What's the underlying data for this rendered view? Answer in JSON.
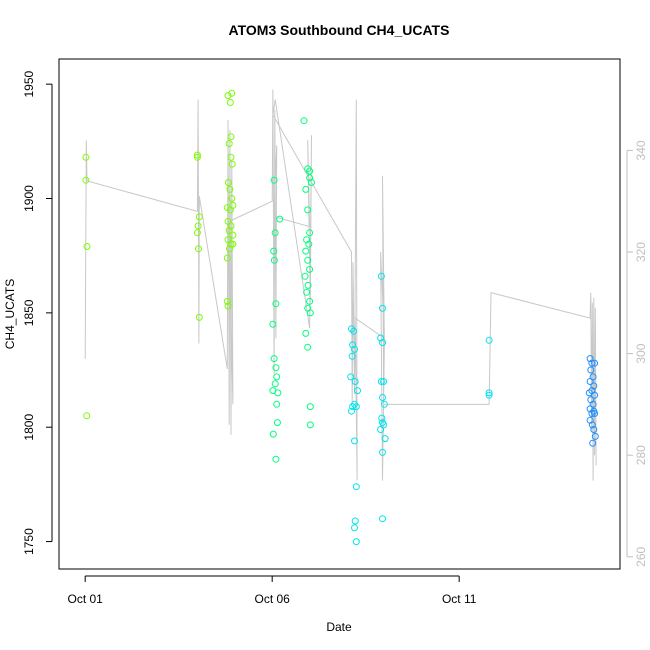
{
  "chart_data": {
    "type": "scatter",
    "title": "ATOM3 Southbound CH4_UCATS",
    "xlabel": "Date",
    "ylabel": "CH4_UCATS",
    "x_ticks": [
      "Oct 01",
      "Oct 06",
      "Oct 11"
    ],
    "x_tick_values": [
      0,
      5,
      10
    ],
    "xlim": [
      -0.7,
      14.3
    ],
    "ylim": [
      1738,
      1961
    ],
    "y_ticks": [
      1750,
      1800,
      1850,
      1900,
      1950
    ],
    "secondary_ylim": [
      257.6,
      358.0
    ],
    "secondary_y_ticks": [
      260,
      280,
      300,
      320,
      340
    ],
    "grid": false,
    "legend": "none",
    "point_colors": {
      "early": "#7CFC00",
      "mid": "#00FF7F",
      "late": "#00E5EE",
      "end": "#1E90FF"
    },
    "line_color": "#c8c8c8",
    "points": [
      [
        0.02,
        1918,
        0
      ],
      [
        0.02,
        1908,
        0
      ],
      [
        0.05,
        1879,
        0
      ],
      [
        0.04,
        1805,
        0
      ],
      [
        3.0,
        1919,
        0
      ],
      [
        3.0,
        1918,
        0
      ],
      [
        3.05,
        1892,
        0
      ],
      [
        3.02,
        1888,
        0
      ],
      [
        3.0,
        1885,
        0
      ],
      [
        3.03,
        1878,
        0
      ],
      [
        3.05,
        1848,
        0
      ],
      [
        3.82,
        1945,
        0
      ],
      [
        3.92,
        1946,
        0
      ],
      [
        3.88,
        1942,
        0
      ],
      [
        3.9,
        1927,
        0
      ],
      [
        3.85,
        1924,
        0
      ],
      [
        3.9,
        1918,
        0
      ],
      [
        3.93,
        1915,
        0
      ],
      [
        3.83,
        1907,
        0
      ],
      [
        3.87,
        1904,
        0
      ],
      [
        3.92,
        1900,
        0
      ],
      [
        3.95,
        1897,
        0
      ],
      [
        3.8,
        1896,
        0
      ],
      [
        3.88,
        1895,
        0
      ],
      [
        3.82,
        1890,
        0
      ],
      [
        3.9,
        1888,
        0
      ],
      [
        3.85,
        1886,
        0
      ],
      [
        3.95,
        1884,
        0
      ],
      [
        3.82,
        1882,
        0
      ],
      [
        3.9,
        1880,
        0
      ],
      [
        3.86,
        1878,
        0
      ],
      [
        3.8,
        1874,
        0
      ],
      [
        3.8,
        1855,
        0
      ],
      [
        3.82,
        1853,
        0
      ],
      [
        3.95,
        1880,
        0
      ],
      [
        5.05,
        1908,
        1
      ],
      [
        5.2,
        1891,
        1
      ],
      [
        5.08,
        1885,
        1
      ],
      [
        5.04,
        1877,
        1
      ],
      [
        5.06,
        1873,
        1
      ],
      [
        5.1,
        1854,
        1
      ],
      [
        5.02,
        1845,
        1
      ],
      [
        5.05,
        1830,
        1
      ],
      [
        5.1,
        1826,
        1
      ],
      [
        5.12,
        1822,
        1
      ],
      [
        5.08,
        1819,
        1
      ],
      [
        5.02,
        1816,
        1
      ],
      [
        5.15,
        1815,
        1
      ],
      [
        5.12,
        1810,
        1
      ],
      [
        5.14,
        1802,
        1
      ],
      [
        5.03,
        1797,
        1
      ],
      [
        5.1,
        1786,
        1
      ],
      [
        5.85,
        1934,
        1
      ],
      [
        5.95,
        1913,
        1
      ],
      [
        6.0,
        1912,
        1
      ],
      [
        6.0,
        1909,
        1
      ],
      [
        6.05,
        1907,
        1
      ],
      [
        5.9,
        1904,
        1
      ],
      [
        5.95,
        1895,
        1
      ],
      [
        6.0,
        1885,
        1
      ],
      [
        5.92,
        1882,
        1
      ],
      [
        5.98,
        1880,
        1
      ],
      [
        5.9,
        1877,
        1
      ],
      [
        5.95,
        1873,
        1
      ],
      [
        6.0,
        1869,
        1
      ],
      [
        5.88,
        1866,
        1
      ],
      [
        5.96,
        1862,
        1
      ],
      [
        5.92,
        1859,
        1
      ],
      [
        6.0,
        1855,
        1
      ],
      [
        5.95,
        1852,
        1
      ],
      [
        6.02,
        1850,
        1
      ],
      [
        5.9,
        1841,
        1
      ],
      [
        5.95,
        1835,
        1
      ],
      [
        6.02,
        1809,
        1
      ],
      [
        6.02,
        1801,
        1
      ],
      [
        7.12,
        1843,
        2
      ],
      [
        7.18,
        1842,
        2
      ],
      [
        7.15,
        1836,
        2
      ],
      [
        7.2,
        1834,
        2
      ],
      [
        7.14,
        1831,
        2
      ],
      [
        7.1,
        1822,
        2
      ],
      [
        7.22,
        1820,
        2
      ],
      [
        7.28,
        1816,
        2
      ],
      [
        7.2,
        1810,
        2
      ],
      [
        7.15,
        1809,
        2
      ],
      [
        7.12,
        1807,
        2
      ],
      [
        7.25,
        1809,
        2
      ],
      [
        7.2,
        1794,
        2
      ],
      [
        7.25,
        1774,
        2
      ],
      [
        7.22,
        1759,
        2
      ],
      [
        7.2,
        1756,
        2
      ],
      [
        7.25,
        1750,
        2
      ],
      [
        7.92,
        1866,
        2
      ],
      [
        7.95,
        1852,
        2
      ],
      [
        7.9,
        1839,
        2
      ],
      [
        7.95,
        1837,
        2
      ],
      [
        7.92,
        1820,
        2
      ],
      [
        7.98,
        1820,
        2
      ],
      [
        7.95,
        1813,
        2
      ],
      [
        8.0,
        1810,
        2
      ],
      [
        7.93,
        1804,
        2
      ],
      [
        7.95,
        1802,
        2
      ],
      [
        7.98,
        1801,
        2
      ],
      [
        7.9,
        1799,
        2
      ],
      [
        8.02,
        1795,
        2
      ],
      [
        7.95,
        1789,
        2
      ],
      [
        7.95,
        1760,
        2
      ],
      [
        10.8,
        1838,
        2
      ],
      [
        10.8,
        1815,
        2
      ],
      [
        10.8,
        1814,
        2
      ],
      [
        13.5,
        1830,
        3
      ],
      [
        13.55,
        1828,
        3
      ],
      [
        13.62,
        1828,
        3
      ],
      [
        13.52,
        1825,
        3
      ],
      [
        13.58,
        1822,
        3
      ],
      [
        13.5,
        1820,
        3
      ],
      [
        13.6,
        1818,
        3
      ],
      [
        13.55,
        1816,
        3
      ],
      [
        13.48,
        1815,
        3
      ],
      [
        13.62,
        1814,
        3
      ],
      [
        13.52,
        1812,
        3
      ],
      [
        13.58,
        1810,
        3
      ],
      [
        13.5,
        1808,
        3
      ],
      [
        13.6,
        1807,
        3
      ],
      [
        13.55,
        1806,
        3
      ],
      [
        13.62,
        1806,
        3
      ],
      [
        13.5,
        1803,
        3
      ],
      [
        13.56,
        1801,
        3
      ],
      [
        13.6,
        1799,
        3
      ],
      [
        13.64,
        1796,
        3
      ],
      [
        13.57,
        1793,
        3
      ]
    ],
    "secondary_line": [
      [
        0.0,
        299
      ],
      [
        0.03,
        342
      ],
      [
        0.05,
        334
      ],
      [
        3.0,
        328
      ],
      [
        3.02,
        350
      ],
      [
        3.04,
        302
      ],
      [
        3.05,
        331
      ],
      [
        3.8,
        297
      ],
      [
        3.82,
        346
      ],
      [
        3.85,
        286
      ],
      [
        3.87,
        344
      ],
      [
        3.9,
        284
      ],
      [
        3.92,
        338
      ],
      [
        3.95,
        290
      ],
      [
        3.85,
        326
      ],
      [
        5.0,
        330
      ],
      [
        5.02,
        352
      ],
      [
        5.05,
        296
      ],
      [
        5.07,
        348
      ],
      [
        5.1,
        303
      ],
      [
        5.12,
        341
      ],
      [
        5.04,
        327
      ],
      [
        6.0,
        325
      ],
      [
        5.95,
        342
      ],
      [
        6.02,
        310
      ],
      [
        6.05,
        343
      ],
      [
        6.0,
        305
      ],
      [
        5.08,
        350
      ],
      [
        5.02,
        347
      ],
      [
        7.12,
        320
      ],
      [
        7.14,
        290
      ],
      [
        7.16,
        318
      ],
      [
        7.2,
        292
      ],
      [
        7.25,
        350
      ],
      [
        7.27,
        275
      ],
      [
        7.22,
        307
      ],
      [
        8.0,
        303
      ],
      [
        7.9,
        320
      ],
      [
        7.95,
        275
      ],
      [
        8.0,
        302
      ],
      [
        7.95,
        335
      ],
      [
        7.98,
        290
      ],
      [
        10.8,
        290
      ],
      [
        10.85,
        312
      ],
      [
        13.5,
        307
      ],
      [
        13.52,
        312
      ],
      [
        13.54,
        285
      ],
      [
        13.56,
        310
      ],
      [
        13.58,
        275
      ],
      [
        13.6,
        311
      ],
      [
        13.62,
        280
      ],
      [
        13.64,
        309
      ],
      [
        13.66,
        278
      ]
    ]
  }
}
